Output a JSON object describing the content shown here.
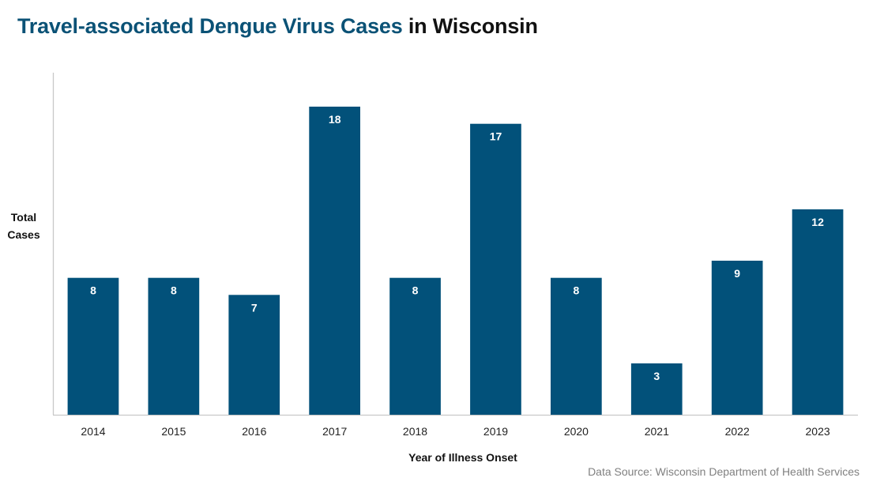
{
  "chart_data": {
    "type": "bar",
    "title_part1": "Travel-associated Dengue Virus Cases",
    "title_part2": "in Wisconsin",
    "xlabel": "Year of Illness Onset",
    "ylabel_line1": "Total",
    "ylabel_line2": "Cases",
    "categories": [
      "2014",
      "2015",
      "2016",
      "2017",
      "2018",
      "2019",
      "2020",
      "2021",
      "2022",
      "2023"
    ],
    "values": [
      8,
      8,
      7,
      18,
      8,
      17,
      8,
      3,
      9,
      12
    ],
    "ylim": [
      0,
      20
    ],
    "grid": false,
    "bar_color": "#02517a",
    "label_color": "#ffffff",
    "source": "Data Source: Wisconsin Department of Health Services"
  }
}
